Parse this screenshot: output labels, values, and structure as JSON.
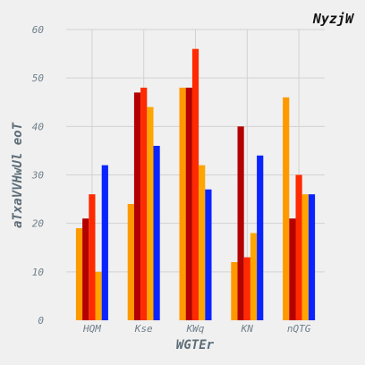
{
  "chart_data": {
    "type": "bar",
    "title": "NyzjW",
    "xlabel": "WGTEr",
    "ylabel": "aTxaVVHwUl eoT",
    "categories": [
      "HQM",
      "Kse",
      "KWq",
      "KN",
      "nQTG"
    ],
    "ylim": [
      0,
      60
    ],
    "yticks": [
      0,
      10,
      20,
      30,
      40,
      50,
      60
    ],
    "grid": true,
    "series": [
      {
        "color": "#ff9900",
        "values": [
          19,
          24,
          48,
          12,
          46
        ]
      },
      {
        "color": "#b30000",
        "values": [
          21,
          47,
          48,
          40,
          21
        ]
      },
      {
        "color": "#ff2a00",
        "values": [
          26,
          48,
          56,
          13,
          30
        ]
      },
      {
        "color": "#ffa500",
        "values": [
          10,
          44,
          32,
          18,
          26
        ]
      },
      {
        "color": "#0a24ff",
        "values": [
          32,
          36,
          27,
          34,
          26
        ]
      }
    ]
  }
}
